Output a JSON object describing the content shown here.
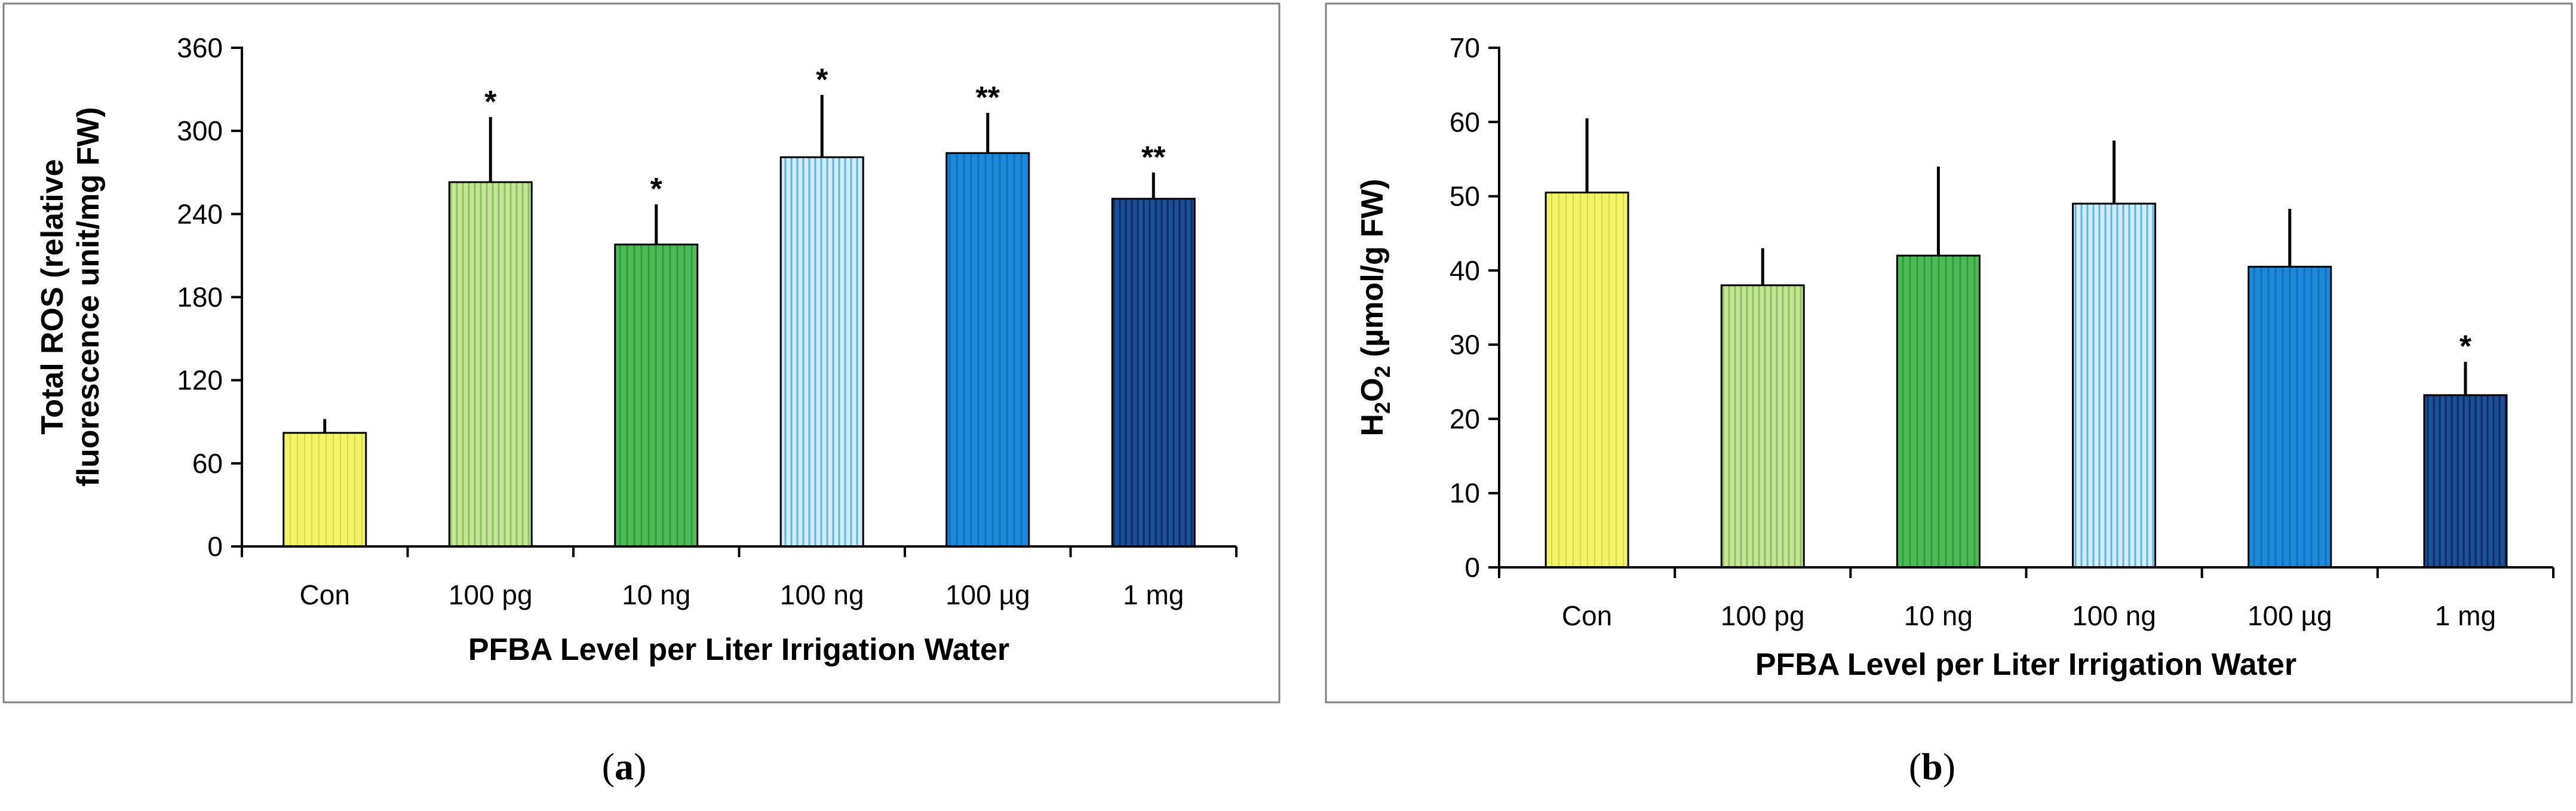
{
  "figure": {
    "panel_a_label": "a",
    "panel_b_label": "b"
  },
  "chart_data": [
    {
      "type": "bar",
      "panel": "a",
      "categories": [
        "Con",
        "100 pg",
        "10 ng",
        "100 ng",
        "100 µg",
        "1 mg"
      ],
      "values": [
        82,
        263,
        218,
        281,
        284,
        251
      ],
      "errors": [
        10,
        47,
        29,
        45,
        29,
        19
      ],
      "significance": [
        "",
        "*",
        "*",
        "*",
        "**",
        "**"
      ],
      "colors": [
        "#f2f56a",
        "#b7dc82",
        "#45b550",
        "#9fd4f2",
        "#1a86d6",
        "#1a4a8e"
      ],
      "ylabel_line1": "Total ROS (relative",
      "ylabel_line2": "fluorescence unit/mg FW)",
      "xlabel": "PFBA Level per Liter Irrigation Water",
      "ylim": [
        0,
        360
      ],
      "yticks": [
        0,
        60,
        120,
        180,
        240,
        300,
        360
      ],
      "ytick_labels": [
        "0",
        "60",
        "120",
        "180",
        "240",
        "300",
        "360"
      ]
    },
    {
      "type": "bar",
      "panel": "b",
      "categories": [
        "Con",
        "100 pg",
        "10 ng",
        "100 ng",
        "100 µg",
        "1 mg"
      ],
      "values": [
        50.5,
        38,
        42,
        49,
        40.5,
        23.2
      ],
      "errors": [
        10,
        5,
        12,
        8.5,
        7.8,
        4.5
      ],
      "significance": [
        "",
        "",
        "",
        "",
        "",
        "*"
      ],
      "colors": [
        "#f2f56a",
        "#b7dc82",
        "#45b550",
        "#9fd4f2",
        "#1a86d6",
        "#1a4a8e"
      ],
      "ylabel_main": "H",
      "ylabel_sub1": "2",
      "ylabel_mid": "O",
      "ylabel_sub2": "2",
      "ylabel_rest": " (µmol/g FW)",
      "xlabel": "PFBA Level per Liter Irrigation Water",
      "ylim": [
        0,
        70
      ],
      "yticks": [
        0,
        10,
        20,
        30,
        40,
        50,
        60,
        70
      ],
      "ytick_labels": [
        "0",
        "10",
        "20",
        "30",
        "40",
        "50",
        "60",
        "70"
      ]
    }
  ]
}
